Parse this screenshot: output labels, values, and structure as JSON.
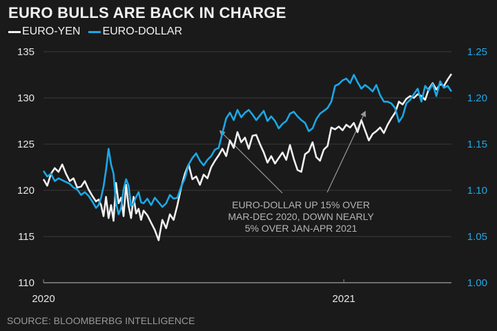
{
  "chart_data": {
    "type": "line",
    "title": "EURO BULLS ARE BACK IN CHARGE",
    "source": "SOURCE: BLOOMBERBG INTELLIGENCE",
    "xlabel": "",
    "x_unit": "months since Jan 2020",
    "x_range": [
      0,
      16.3
    ],
    "x_ticks": [
      {
        "value": 0,
        "label": "2020"
      },
      {
        "value": 12,
        "label": "2021"
      }
    ],
    "left_axis": {
      "label": "EURO-YEN",
      "ylim": [
        110,
        135
      ],
      "ticks": [
        "110",
        "115",
        "120",
        "125",
        "130",
        "135"
      ],
      "tick_values": [
        110,
        115,
        120,
        125,
        130,
        135
      ]
    },
    "right_axis": {
      "label": "EURO-DOLLAR",
      "ylim": [
        1.0,
        1.25
      ],
      "ticks": [
        "1.00",
        "1.05",
        "1.10",
        "1.15",
        "1.20",
        "1.25"
      ],
      "tick_values": [
        1.0,
        1.05,
        1.1,
        1.15,
        1.2,
        1.25
      ]
    },
    "grid": true,
    "legend_placement": "top-left",
    "series": [
      {
        "name": "EURO-YEN",
        "axis": "left",
        "color": "#f0f0f0",
        "x": [
          0,
          0.15,
          0.3,
          0.45,
          0.6,
          0.75,
          0.9,
          1.05,
          1.2,
          1.35,
          1.5,
          1.65,
          1.8,
          1.95,
          2.1,
          2.2,
          2.3,
          2.4,
          2.5,
          2.6,
          2.7,
          2.8,
          2.9,
          3.0,
          3.1,
          3.2,
          3.3,
          3.4,
          3.5,
          3.6,
          3.7,
          3.8,
          3.9,
          4.0,
          4.15,
          4.3,
          4.45,
          4.6,
          4.75,
          4.9,
          5.05,
          5.2,
          5.35,
          5.5,
          5.65,
          5.8,
          5.95,
          6.1,
          6.25,
          6.4,
          6.55,
          6.7,
          6.85,
          7.0,
          7.15,
          7.3,
          7.45,
          7.6,
          7.75,
          7.9,
          8.05,
          8.2,
          8.35,
          8.5,
          8.65,
          8.8,
          8.95,
          9.1,
          9.25,
          9.4,
          9.55,
          9.7,
          9.85,
          10.0,
          10.15,
          10.3,
          10.45,
          10.6,
          10.75,
          10.9,
          11.05,
          11.2,
          11.35,
          11.5,
          11.65,
          11.8,
          11.95,
          12.1,
          12.25,
          12.4,
          12.55,
          12.7,
          12.85,
          13.0,
          13.15,
          13.3,
          13.45,
          13.6,
          13.75,
          13.9,
          14.05,
          14.2,
          14.35,
          14.5,
          14.65,
          14.8,
          14.95,
          15.1,
          15.25,
          15.4,
          15.55,
          15.7,
          15.85,
          16.0,
          16.15,
          16.3
        ],
        "values": [
          121.2,
          120.5,
          121.8,
          122.4,
          122.0,
          122.8,
          121.8,
          121.0,
          121.3,
          120.3,
          120.4,
          121.0,
          120.1,
          119.4,
          118.8,
          119.0,
          118.4,
          117.2,
          119.3,
          117.0,
          118.4,
          116.7,
          120.8,
          118.6,
          119.2,
          117.2,
          120.6,
          118.3,
          117.0,
          119.3,
          117.5,
          118.0,
          116.8,
          117.8,
          117.3,
          116.5,
          115.7,
          114.6,
          116.8,
          115.9,
          117.4,
          116.8,
          118.4,
          120.3,
          121.8,
          122.8,
          121.2,
          121.5,
          120.6,
          121.7,
          121.3,
          122.5,
          123.2,
          123.8,
          124.5,
          123.7,
          125.4,
          124.6,
          126.3,
          125.2,
          125.7,
          124.5,
          125.9,
          126.0,
          125.0,
          124.1,
          123.0,
          123.7,
          122.9,
          123.5,
          124.1,
          123.3,
          124.9,
          123.4,
          122.2,
          122.0,
          123.9,
          124.2,
          125.2,
          123.6,
          123.2,
          124.4,
          124.8,
          126.8,
          126.6,
          126.9,
          126.5,
          127.1,
          126.8,
          127.3,
          126.3,
          127.6,
          126.5,
          125.4,
          126.1,
          126.4,
          126.8,
          126.2,
          127.1,
          127.8,
          128.4,
          129.6,
          129.3,
          129.9,
          130.2,
          130.0,
          130.4,
          130.2,
          129.8,
          131.0,
          131.6,
          130.9,
          131.5,
          131.3,
          132.0,
          132.6
        ]
      },
      {
        "name": "EURO-DOLLAR",
        "axis": "right",
        "color": "#1aa8e8",
        "x": [
          0,
          0.15,
          0.3,
          0.45,
          0.6,
          0.75,
          0.9,
          1.05,
          1.2,
          1.35,
          1.5,
          1.65,
          1.8,
          1.95,
          2.1,
          2.2,
          2.3,
          2.4,
          2.5,
          2.6,
          2.7,
          2.8,
          2.9,
          3.0,
          3.1,
          3.2,
          3.3,
          3.4,
          3.5,
          3.6,
          3.7,
          3.8,
          3.9,
          4.0,
          4.15,
          4.3,
          4.45,
          4.6,
          4.75,
          4.9,
          5.05,
          5.2,
          5.35,
          5.5,
          5.65,
          5.8,
          5.95,
          6.1,
          6.25,
          6.4,
          6.55,
          6.7,
          6.85,
          7.0,
          7.15,
          7.3,
          7.45,
          7.6,
          7.75,
          7.9,
          8.05,
          8.2,
          8.35,
          8.5,
          8.65,
          8.8,
          8.95,
          9.1,
          9.25,
          9.4,
          9.55,
          9.7,
          9.85,
          10.0,
          10.15,
          10.3,
          10.45,
          10.6,
          10.75,
          10.9,
          11.05,
          11.2,
          11.35,
          11.5,
          11.65,
          11.8,
          11.95,
          12.1,
          12.25,
          12.4,
          12.55,
          12.7,
          12.85,
          13.0,
          13.15,
          13.3,
          13.45,
          13.6,
          13.75,
          13.9,
          14.05,
          14.2,
          14.35,
          14.5,
          14.65,
          14.8,
          14.95,
          15.1,
          15.25,
          15.4,
          15.55,
          15.7,
          15.85,
          16.0,
          16.15,
          16.3
        ],
        "values": [
          1.121,
          1.115,
          1.118,
          1.11,
          1.113,
          1.111,
          1.109,
          1.107,
          1.103,
          1.101,
          1.095,
          1.098,
          1.094,
          1.088,
          1.081,
          1.084,
          1.092,
          1.104,
          1.122,
          1.145,
          1.128,
          1.118,
          1.086,
          1.074,
          1.081,
          1.101,
          1.112,
          1.105,
          1.083,
          1.086,
          1.093,
          1.098,
          1.087,
          1.086,
          1.091,
          1.084,
          1.092,
          1.087,
          1.082,
          1.086,
          1.095,
          1.091,
          1.092,
          1.104,
          1.113,
          1.128,
          1.135,
          1.14,
          1.132,
          1.127,
          1.133,
          1.137,
          1.144,
          1.146,
          1.162,
          1.178,
          1.184,
          1.176,
          1.187,
          1.179,
          1.184,
          1.187,
          1.182,
          1.176,
          1.181,
          1.186,
          1.175,
          1.18,
          1.175,
          1.167,
          1.172,
          1.175,
          1.183,
          1.185,
          1.18,
          1.176,
          1.173,
          1.164,
          1.167,
          1.177,
          1.183,
          1.186,
          1.189,
          1.196,
          1.213,
          1.215,
          1.219,
          1.221,
          1.216,
          1.225,
          1.217,
          1.21,
          1.214,
          1.211,
          1.207,
          1.214,
          1.203,
          1.196,
          1.196,
          1.194,
          1.189,
          1.174,
          1.18,
          1.194,
          1.198,
          1.204,
          1.21,
          1.196,
          1.213,
          1.208,
          1.215,
          1.202,
          1.218,
          1.211,
          1.213,
          1.207
        ]
      }
    ],
    "annotation": {
      "lines": [
        "EURO-DOLLAR UP 15% OVER",
        "MAR-DEC 2020, DOWN NEARLY",
        "5% OVER JAN-APR 2021"
      ]
    }
  }
}
